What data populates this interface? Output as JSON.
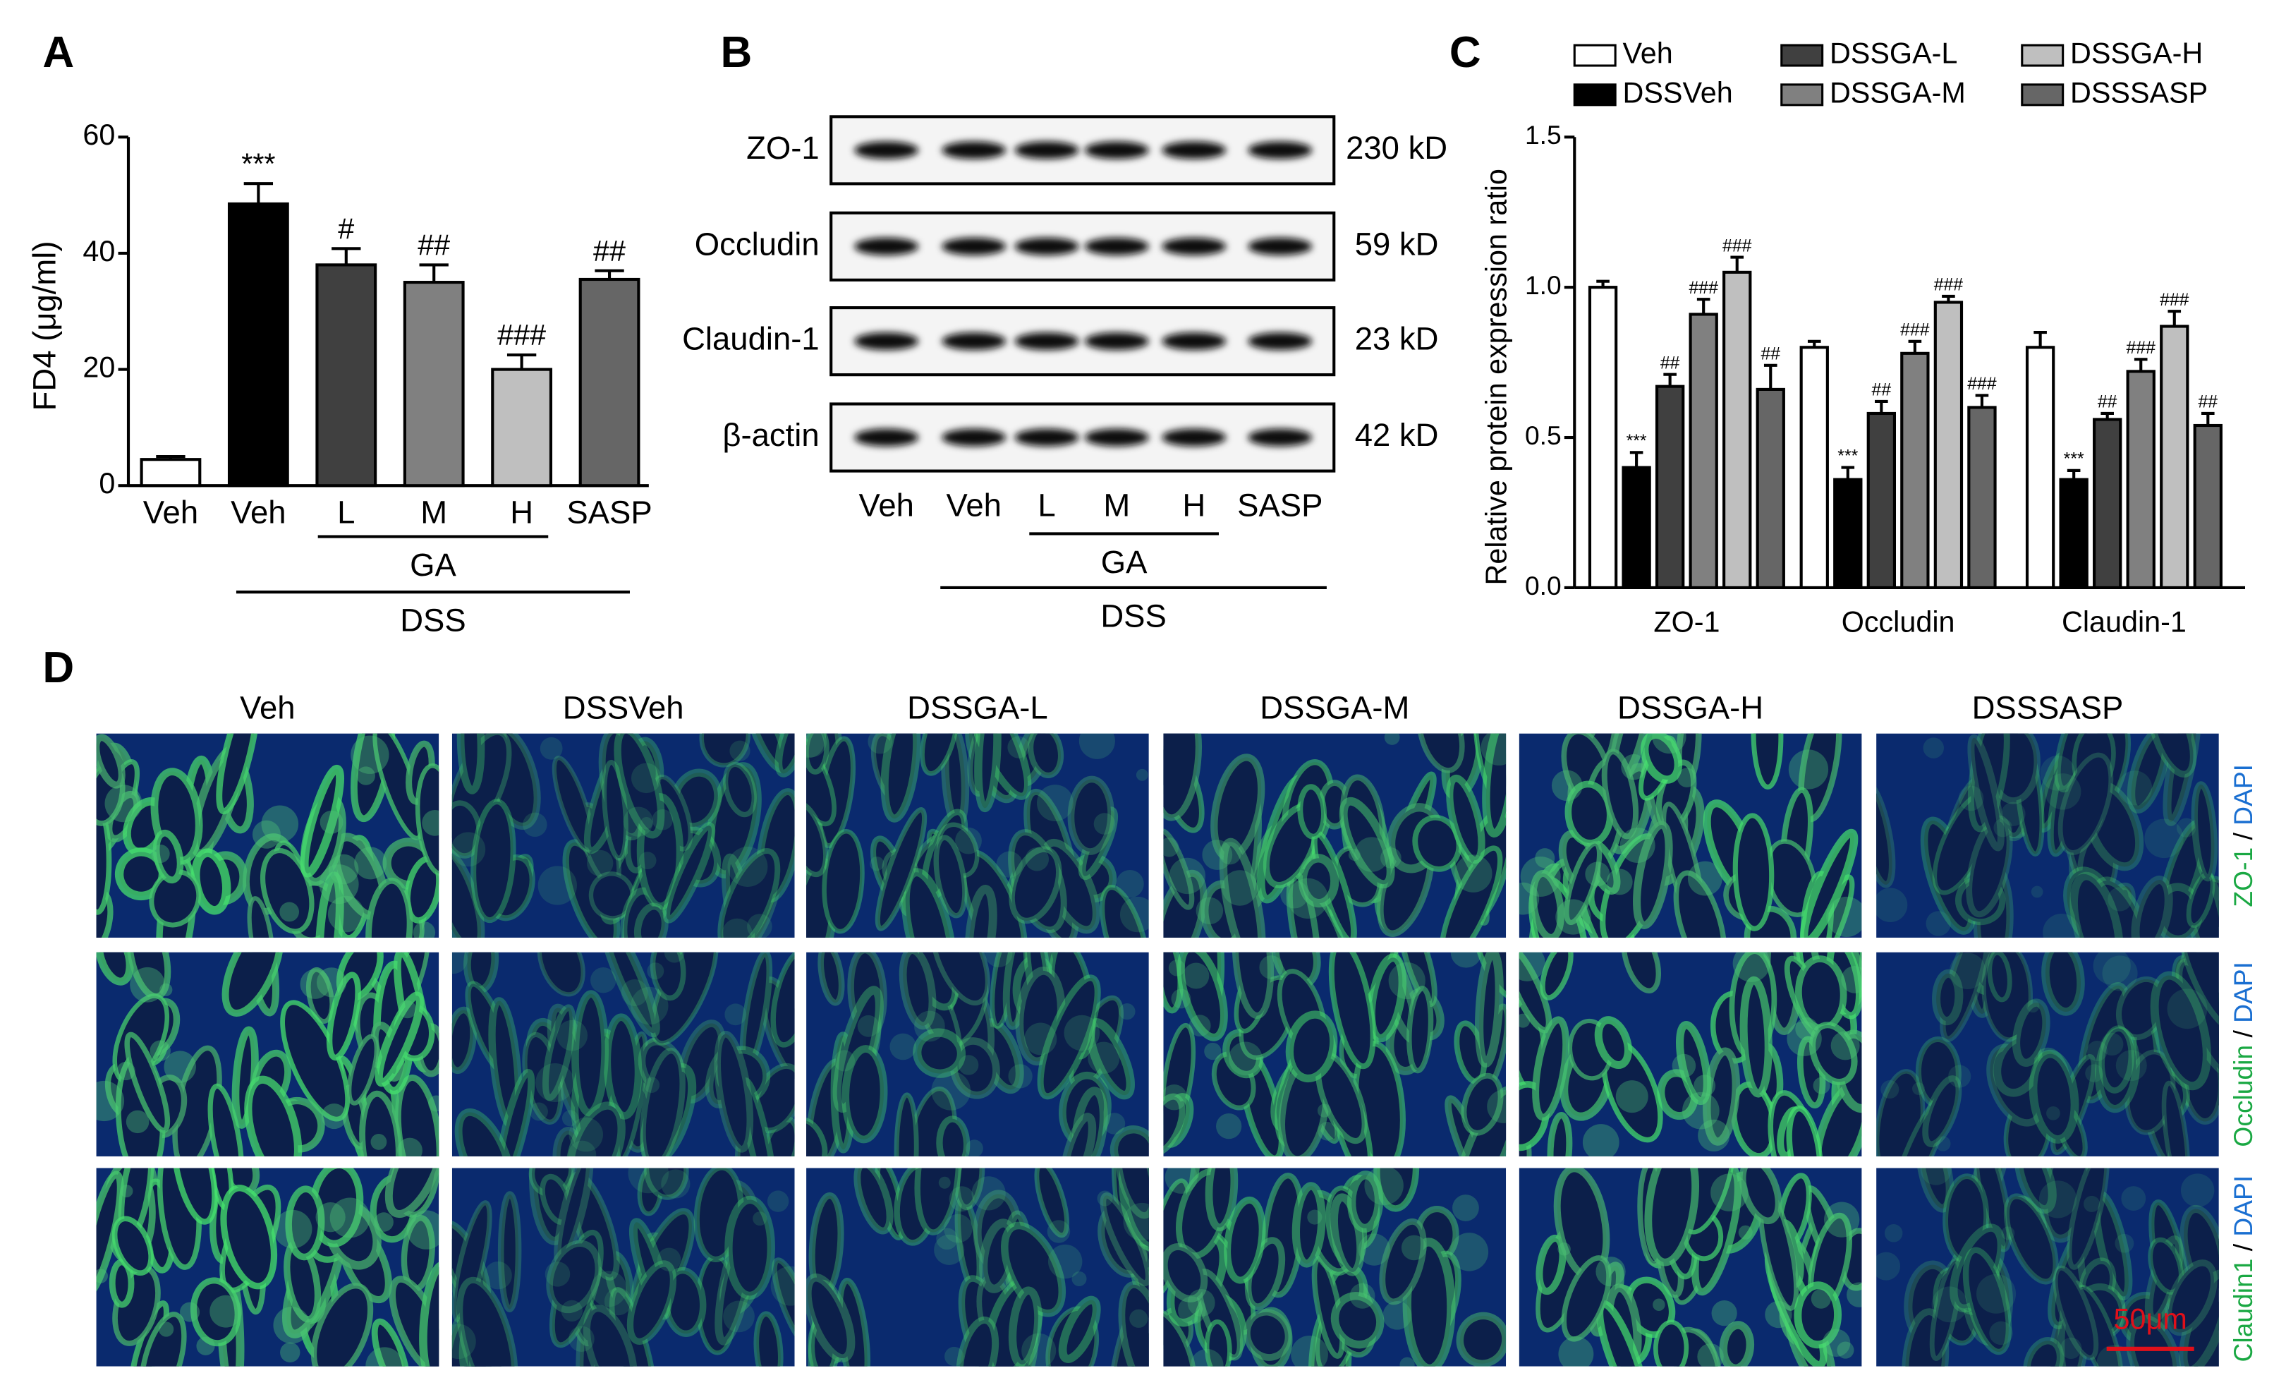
{
  "chart_data": [
    {
      "type": "bar",
      "label": "A",
      "ylabel": "FD4 (μg/ml)",
      "categories": [
        "Veh",
        "Veh",
        "L",
        "M",
        "H",
        "SASP"
      ],
      "values": [
        4.5,
        48.5,
        38,
        35,
        20,
        35.5
      ],
      "errors": [
        0.5,
        3.5,
        2.8,
        3,
        2.5,
        1.5
      ],
      "annotations": [
        null,
        "***",
        "#",
        "##",
        "###",
        "##"
      ],
      "colors": [
        "#ffffff",
        "#000000",
        "#404040",
        "#808080",
        "#bfbfbf",
        "#666666"
      ],
      "group_labels": [
        "GA",
        "DSS"
      ],
      "ylim": [
        0,
        60
      ],
      "yticks": [
        0,
        20,
        40,
        60
      ]
    },
    {
      "type": "bar",
      "label": "C",
      "ylabel": "Relative protein expression ratio",
      "categories": [
        "ZO-1",
        "Occludin",
        "Claudin-1"
      ],
      "series": [
        {
          "name": "Veh",
          "color": "#ffffff",
          "values": [
            1.0,
            0.8,
            0.8
          ],
          "errors": [
            0.02,
            0.02,
            0.05
          ]
        },
        {
          "name": "DSSVeh",
          "color": "#000000",
          "values": [
            0.4,
            0.36,
            0.36
          ],
          "errors": [
            0.05,
            0.04,
            0.03
          ],
          "annotations": [
            "***",
            "***",
            "***"
          ]
        },
        {
          "name": "DSSGA-L",
          "color": "#404040",
          "values": [
            0.67,
            0.58,
            0.56
          ],
          "errors": [
            0.04,
            0.04,
            0.02
          ],
          "annotations": [
            "##",
            "##",
            "##"
          ]
        },
        {
          "name": "DSSGA-M",
          "color": "#808080",
          "values": [
            0.91,
            0.78,
            0.72
          ],
          "errors": [
            0.05,
            0.04,
            0.04
          ],
          "annotations": [
            "###",
            "###",
            "###"
          ]
        },
        {
          "name": "DSSGA-H",
          "color": "#bfbfbf",
          "values": [
            1.05,
            0.95,
            0.87
          ],
          "errors": [
            0.05,
            0.02,
            0.05
          ],
          "annotations": [
            "###",
            "###",
            "###"
          ]
        },
        {
          "name": "DSSSASP",
          "color": "#666666",
          "values": [
            0.66,
            0.6,
            0.54
          ],
          "errors": [
            0.08,
            0.04,
            0.04
          ],
          "annotations": [
            "##",
            "###",
            "##"
          ]
        }
      ],
      "ylim": [
        0,
        1.5
      ],
      "yticks": [
        {
          "value": 0,
          "label": "0.0"
        },
        {
          "value": 0.5,
          "label": "0.5"
        },
        {
          "value": 1,
          "label": "1.0"
        },
        {
          "value": 1.5,
          "label": "1.5"
        }
      ]
    }
  ],
  "blot": {
    "label": "B",
    "proteins": [
      "ZO-1",
      "Occludin",
      "Claudin-1",
      "β-actin"
    ],
    "sizes": [
      "230 kD",
      "59 kD",
      "23 kD",
      "42 kD"
    ],
    "lanes": [
      "Veh",
      "Veh",
      "L",
      "M",
      "H",
      "SASP"
    ],
    "group_labels": [
      "GA",
      "DSS"
    ]
  },
  "micrographs": {
    "label": "D",
    "columns": [
      "Veh",
      "DSSVeh",
      "DSSGA-L",
      "DSSGA-M",
      "DSSGA-H",
      "DSSSASP"
    ],
    "rows": [
      [
        "ZO-1",
        "/",
        "DAPI"
      ],
      [
        "Occludin",
        "/",
        "DAPI"
      ],
      [
        "Claudin1",
        "/",
        "DAPI"
      ]
    ],
    "scale_bar": "50μm"
  }
}
